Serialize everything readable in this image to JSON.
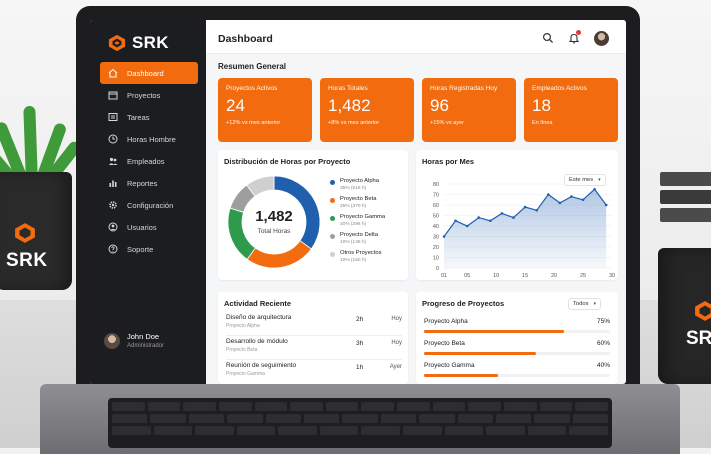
{
  "brand": {
    "name": "SRK",
    "accent_color": "#f26b0f"
  },
  "sidebar": {
    "items": [
      {
        "label": "Dashboard",
        "icon": "home-icon",
        "active": true
      },
      {
        "label": "Proyectos",
        "icon": "calendar-icon",
        "active": false
      },
      {
        "label": "Tareas",
        "icon": "list-icon",
        "active": false
      },
      {
        "label": "Horas Hombre",
        "icon": "clock-icon",
        "active": false
      },
      {
        "label": "Empleados",
        "icon": "users-icon",
        "active": false
      },
      {
        "label": "Reportes",
        "icon": "bar-chart-icon",
        "active": false
      },
      {
        "label": "Configuración",
        "icon": "gear-icon",
        "active": false
      },
      {
        "label": "Usuarios",
        "icon": "user-circle-icon",
        "active": false
      },
      {
        "label": "Soporte",
        "icon": "help-icon",
        "active": false
      }
    ],
    "user": {
      "name": "John Doe",
      "role": "Administrador"
    }
  },
  "header": {
    "title": "Dashboard"
  },
  "summary": {
    "title": "Resumen General",
    "cards": [
      {
        "label": "Proyectos Activos",
        "value": "24",
        "sub": "+12% vs mes anterior"
      },
      {
        "label": "Horas Totales",
        "value": "1,482",
        "sub": "+8% vs mes anterior"
      },
      {
        "label": "Horas Registradas Hoy",
        "value": "96",
        "sub": "+15% vs ayer"
      },
      {
        "label": "Empleados Activos",
        "value": "18",
        "sub": "En línea"
      }
    ]
  },
  "distribution": {
    "title": "Distribución de Horas por Proyecto",
    "center_value": "1,482",
    "center_label": "Total Horas",
    "legend": [
      {
        "name": "Proyecto Alpha",
        "sub": "35% (518 h)",
        "color": "#1f5fae"
      },
      {
        "name": "Proyecto Beta",
        "sub": "25% (370 h)",
        "color": "#f26b0f"
      },
      {
        "name": "Proyecto Gamma",
        "sub": "20% (296 h)",
        "color": "#2e9a4b"
      },
      {
        "name": "Proyecto Delta",
        "sub": "10% (148 h)",
        "color": "#9e9e9e"
      },
      {
        "name": "Otros Proyectos",
        "sub": "10% (150 h)",
        "color": "#cfcfcf"
      }
    ]
  },
  "hours_chart": {
    "title": "Horas por Mes",
    "filter": "Este mes"
  },
  "activity": {
    "title": "Actividad Reciente",
    "rows": [
      {
        "task": "Diseño de arquitectura",
        "project": "Proyecto Alpha",
        "hours": "2h",
        "when": "Hoy"
      },
      {
        "task": "Desarrollo de módulo",
        "project": "Proyecto Beta",
        "hours": "3h",
        "when": "Hoy"
      },
      {
        "task": "Reunión de seguimiento",
        "project": "Proyecto Gamma",
        "hours": "1h",
        "when": "Ayer"
      }
    ]
  },
  "progress": {
    "title": "Progreso de Proyectos",
    "filter": "Todos",
    "rows": [
      {
        "name": "Proyecto Alpha",
        "pct_label": "75%",
        "pct": 0.75
      },
      {
        "name": "Proyecto Beta",
        "pct_label": "60%",
        "pct": 0.6
      },
      {
        "name": "Proyecto Gamma",
        "pct_label": "40%",
        "pct": 0.4
      }
    ]
  },
  "chart_data": [
    {
      "type": "pie",
      "title": "Distribución de Horas por Proyecto",
      "categories": [
        "Proyecto Alpha",
        "Proyecto Beta",
        "Proyecto Gamma",
        "Proyecto Delta",
        "Otros Proyectos"
      ],
      "values": [
        518,
        370,
        296,
        148,
        150
      ],
      "colors": [
        "#1f5fae",
        "#f26b0f",
        "#2e9a4b",
        "#9e9e9e",
        "#cfcfcf"
      ]
    },
    {
      "type": "area",
      "title": "Horas por Mes",
      "x": [
        1,
        3,
        5,
        7,
        9,
        11,
        13,
        15,
        17,
        19,
        21,
        23,
        25,
        27,
        29
      ],
      "y": [
        30,
        45,
        40,
        48,
        45,
        52,
        48,
        58,
        55,
        70,
        62,
        68,
        65,
        75,
        60
      ],
      "xticks": [
        "01",
        "05",
        "10",
        "15",
        "20",
        "25",
        "30"
      ],
      "yticks": [
        "0",
        "10",
        "20",
        "30",
        "40",
        "50",
        "60",
        "70",
        "80"
      ],
      "ylim": [
        0,
        80
      ],
      "color": "#1f5fae",
      "grid": true
    }
  ],
  "icons": {
    "search": "search-icon",
    "bell": "bell-icon",
    "decor_mug_text": "SRK"
  }
}
